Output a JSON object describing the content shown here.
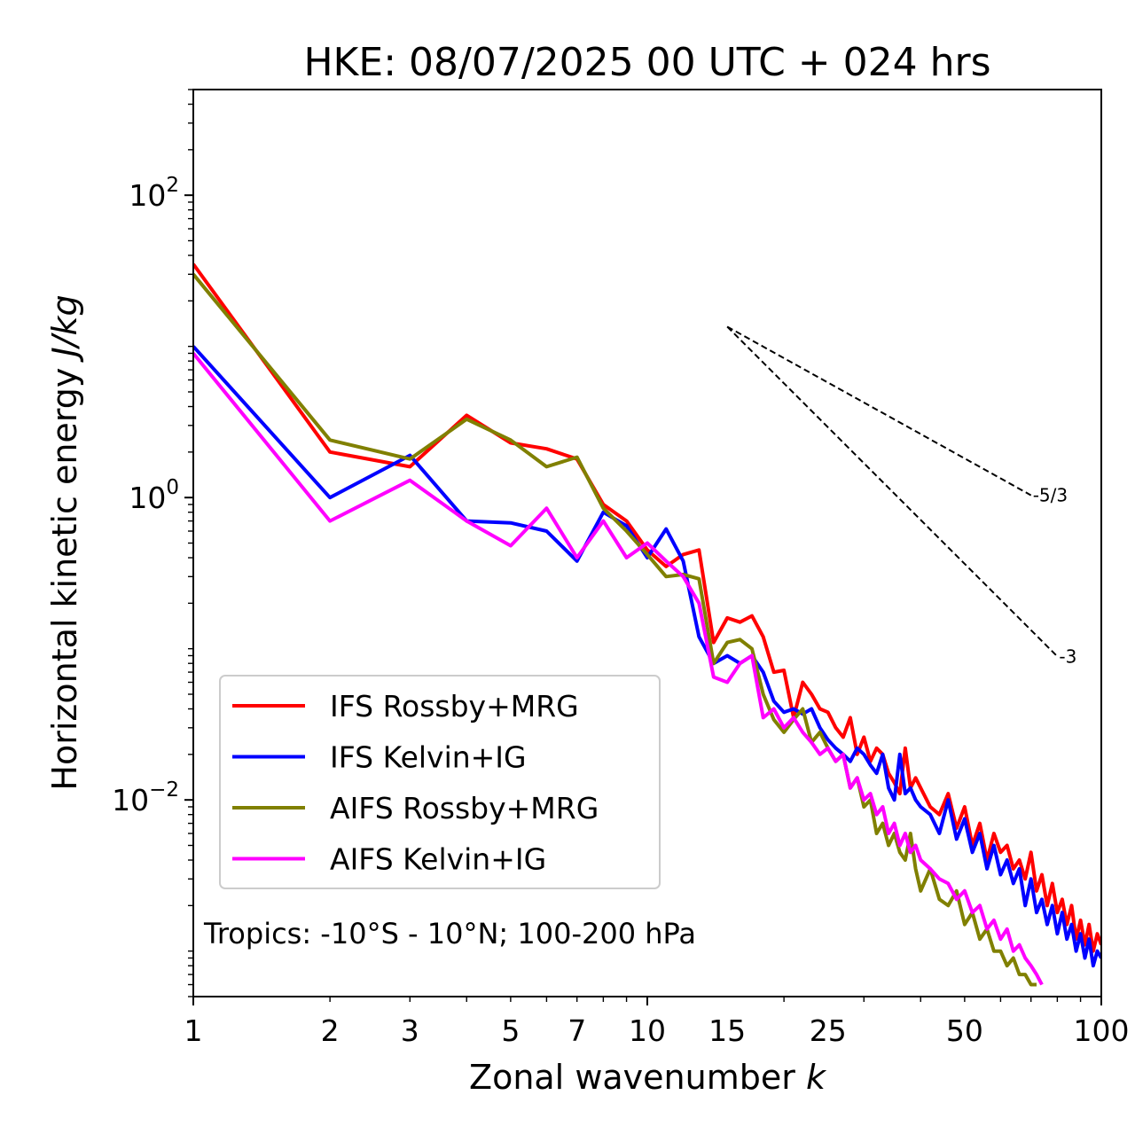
{
  "chart_data": {
    "type": "line",
    "title": "HKE: 08/07/2025 00 UTC + 024 hrs",
    "xlabel": "Zonal wavenumber ",
    "xlabel_var": "k",
    "ylabel": "Horizontal kinetic energy ",
    "ylabel_unit": "J/kg",
    "xscale": "log",
    "yscale": "log",
    "xlim": [
      1,
      100
    ],
    "ylim": [
      0.0005,
      500
    ],
    "x_ticks": [
      1,
      2,
      3,
      5,
      7,
      10,
      15,
      25,
      50,
      100
    ],
    "x_tick_labels": [
      "1",
      "2",
      "3",
      "5",
      "7",
      "10",
      "15",
      "25",
      "50",
      "100"
    ],
    "y_ticks": [
      0.01,
      1,
      100
    ],
    "y_tick_labels": [
      {
        "base": "10",
        "exp": "−2"
      },
      {
        "base": "10",
        "exp": "0"
      },
      {
        "base": "10",
        "exp": "2"
      }
    ],
    "annotation": "Tropics: -10°S - 10°N; 100-200 hPa",
    "legend_position": "lower-left",
    "reference_lines": [
      {
        "label": "-5/3",
        "slope": -1.6667,
        "x0": 15,
        "y0": 13.5,
        "x1": 70
      },
      {
        "label": "-3",
        "slope": -3,
        "x0": 15,
        "y0": 13.5,
        "x1": 80
      }
    ],
    "series": [
      {
        "name": "IFS Rossby+MRG",
        "color": "#ff0000",
        "x": [
          1,
          2,
          3,
          4,
          5,
          6,
          7,
          8,
          9,
          10,
          11,
          12,
          13,
          14,
          15,
          16,
          17,
          18,
          19,
          20,
          21,
          22,
          23,
          24,
          25,
          26,
          27,
          28,
          29,
          30,
          31,
          32,
          33,
          34,
          35,
          36,
          37,
          38,
          39,
          40,
          42,
          44,
          46,
          48,
          50,
          52,
          54,
          56,
          58,
          60,
          62,
          64,
          66,
          68,
          70,
          72,
          74,
          76,
          78,
          80,
          82,
          84,
          86,
          88,
          90,
          92,
          94,
          96,
          98,
          100
        ],
        "y": [
          35,
          2.0,
          1.6,
          3.5,
          2.3,
          2.1,
          1.8,
          0.9,
          0.7,
          0.45,
          0.35,
          0.42,
          0.45,
          0.11,
          0.16,
          0.15,
          0.165,
          0.12,
          0.07,
          0.072,
          0.035,
          0.06,
          0.05,
          0.04,
          0.038,
          0.03,
          0.026,
          0.035,
          0.02,
          0.026,
          0.018,
          0.022,
          0.02,
          0.015,
          0.013,
          0.011,
          0.022,
          0.012,
          0.014,
          0.012,
          0.009,
          0.008,
          0.011,
          0.0065,
          0.009,
          0.005,
          0.007,
          0.004,
          0.006,
          0.0045,
          0.005,
          0.0035,
          0.004,
          0.003,
          0.0045,
          0.0025,
          0.0032,
          0.002,
          0.0028,
          0.0018,
          0.0022,
          0.0015,
          0.002,
          0.0012,
          0.0016,
          0.0011,
          0.0015,
          0.001,
          0.0013,
          0.0011
        ]
      },
      {
        "name": "IFS Kelvin+IG",
        "color": "#0000ff",
        "x": [
          1,
          2,
          3,
          4,
          5,
          6,
          7,
          8,
          9,
          10,
          11,
          12,
          13,
          14,
          15,
          16,
          17,
          18,
          19,
          20,
          21,
          22,
          23,
          24,
          25,
          26,
          27,
          28,
          29,
          30,
          31,
          32,
          33,
          34,
          35,
          36,
          37,
          38,
          39,
          40,
          42,
          44,
          46,
          48,
          50,
          52,
          54,
          56,
          58,
          60,
          62,
          64,
          66,
          68,
          70,
          72,
          74,
          76,
          78,
          80,
          82,
          84,
          86,
          88,
          90,
          92,
          94,
          96,
          98,
          100
        ],
        "y": [
          10,
          1.0,
          1.9,
          0.7,
          0.68,
          0.6,
          0.38,
          0.8,
          0.65,
          0.4,
          0.62,
          0.38,
          0.12,
          0.08,
          0.09,
          0.08,
          0.09,
          0.07,
          0.045,
          0.038,
          0.04,
          0.037,
          0.04,
          0.03,
          0.025,
          0.022,
          0.02,
          0.018,
          0.022,
          0.02,
          0.017,
          0.015,
          0.02,
          0.012,
          0.01,
          0.02,
          0.011,
          0.012,
          0.01,
          0.009,
          0.008,
          0.006,
          0.01,
          0.0055,
          0.0075,
          0.0045,
          0.006,
          0.0035,
          0.005,
          0.0032,
          0.004,
          0.0028,
          0.0035,
          0.002,
          0.003,
          0.0018,
          0.0022,
          0.0015,
          0.002,
          0.0013,
          0.0018,
          0.0012,
          0.0015,
          0.001,
          0.0013,
          0.0009,
          0.0012,
          0.0008,
          0.001,
          0.0009
        ]
      },
      {
        "name": "AIFS Rossby+MRG",
        "color": "#808000",
        "x": [
          1,
          2,
          3,
          4,
          5,
          6,
          7,
          8,
          9,
          10,
          11,
          12,
          13,
          14,
          15,
          16,
          17,
          18,
          19,
          20,
          21,
          22,
          23,
          24,
          25,
          26,
          27,
          28,
          29,
          30,
          31,
          32,
          33,
          34,
          35,
          36,
          37,
          38,
          39,
          40,
          42,
          44,
          46,
          48,
          50,
          52,
          54,
          56,
          58,
          60,
          62,
          64,
          66,
          68,
          70,
          72
        ],
        "y": [
          30,
          2.4,
          1.8,
          3.3,
          2.4,
          1.6,
          1.85,
          0.85,
          0.6,
          0.42,
          0.3,
          0.31,
          0.29,
          0.08,
          0.11,
          0.115,
          0.1,
          0.05,
          0.034,
          0.028,
          0.034,
          0.04,
          0.024,
          0.028,
          0.022,
          0.018,
          0.02,
          0.012,
          0.014,
          0.009,
          0.01,
          0.006,
          0.007,
          0.005,
          0.006,
          0.0045,
          0.004,
          0.006,
          0.0035,
          0.0025,
          0.0035,
          0.0022,
          0.002,
          0.0025,
          0.0015,
          0.0018,
          0.0012,
          0.0014,
          0.001,
          0.001,
          0.0008,
          0.0009,
          0.0007,
          0.0007,
          0.0006,
          0.0006
        ]
      },
      {
        "name": "AIFS Kelvin+IG",
        "color": "#ff00ff",
        "x": [
          1,
          2,
          3,
          4,
          5,
          6,
          7,
          8,
          9,
          10,
          11,
          12,
          13,
          14,
          15,
          16,
          17,
          18,
          19,
          20,
          21,
          22,
          23,
          24,
          25,
          26,
          27,
          28,
          29,
          30,
          31,
          32,
          33,
          34,
          35,
          36,
          37,
          38,
          39,
          40,
          42,
          44,
          46,
          48,
          50,
          52,
          54,
          56,
          58,
          60,
          62,
          64,
          66,
          68,
          70,
          72,
          74
        ],
        "y": [
          9,
          0.7,
          1.3,
          0.7,
          0.48,
          0.85,
          0.4,
          0.7,
          0.4,
          0.5,
          0.38,
          0.3,
          0.2,
          0.065,
          0.06,
          0.08,
          0.09,
          0.035,
          0.04,
          0.03,
          0.035,
          0.028,
          0.024,
          0.02,
          0.022,
          0.018,
          0.02,
          0.012,
          0.014,
          0.01,
          0.011,
          0.008,
          0.009,
          0.006,
          0.007,
          0.005,
          0.006,
          0.0045,
          0.005,
          0.004,
          0.0035,
          0.003,
          0.0028,
          0.0022,
          0.0025,
          0.0018,
          0.002,
          0.0014,
          0.0016,
          0.0012,
          0.0014,
          0.001,
          0.0011,
          0.0009,
          0.0008,
          0.0007,
          0.0006
        ]
      }
    ]
  }
}
